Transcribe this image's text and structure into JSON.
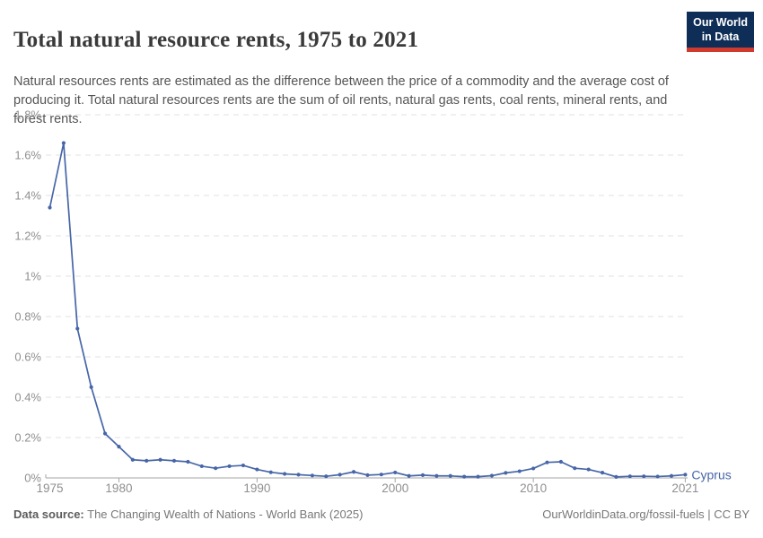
{
  "header": {
    "title": "Total natural resource rents, 1975 to 2021",
    "subtitle": "Natural resources rents are estimated as the difference between the price of a commodity and the average cost of producing it. Total natural resources rents are the sum of oil rents, natural gas rents, coal rents, mineral rents, and forest rents.",
    "logo": {
      "line1": "Our World",
      "line2": "in Data",
      "bg_color": "#0f2e57",
      "bar_color": "#d0392e"
    }
  },
  "chart_data": {
    "type": "line",
    "title": "Total natural resource rents, 1975 to 2021",
    "xlabel": "",
    "ylabel": "",
    "xlim": [
      1975,
      2021
    ],
    "ylim": [
      0,
      1.8
    ],
    "grid": "horizontal-dashed",
    "legend_position": "end-of-line-label",
    "entity_label": "Cyprus",
    "x_ticks": [
      1975,
      1980,
      1990,
      2000,
      2010,
      2021
    ],
    "y_ticks": [
      {
        "value": 0,
        "label": "0%"
      },
      {
        "value": 0.2,
        "label": "0.2%"
      },
      {
        "value": 0.4,
        "label": "0.4%"
      },
      {
        "value": 0.6,
        "label": "0.6%"
      },
      {
        "value": 0.8,
        "label": "0.8%"
      },
      {
        "value": 1,
        "label": "1%"
      },
      {
        "value": 1.2,
        "label": "1.2%"
      },
      {
        "value": 1.4,
        "label": "1.4%"
      },
      {
        "value": 1.6,
        "label": "1.6%"
      },
      {
        "value": 1.8,
        "label": "1.8%"
      }
    ],
    "series": [
      {
        "name": "Cyprus",
        "color": "#4766a8",
        "x": [
          1975,
          1976,
          1977,
          1978,
          1979,
          1980,
          1981,
          1982,
          1983,
          1984,
          1985,
          1986,
          1987,
          1988,
          1989,
          1990,
          1991,
          1992,
          1993,
          1994,
          1995,
          1996,
          1997,
          1998,
          1999,
          2000,
          2001,
          2002,
          2003,
          2004,
          2005,
          2006,
          2007,
          2008,
          2009,
          2010,
          2011,
          2012,
          2013,
          2014,
          2015,
          2016,
          2017,
          2018,
          2019,
          2020,
          2021
        ],
        "values": [
          1.34,
          1.66,
          0.74,
          0.45,
          0.22,
          0.155,
          0.09,
          0.085,
          0.09,
          0.085,
          0.08,
          0.058,
          0.048,
          0.058,
          0.062,
          0.042,
          0.028,
          0.02,
          0.016,
          0.012,
          0.008,
          0.016,
          0.03,
          0.014,
          0.017,
          0.027,
          0.01,
          0.014,
          0.01,
          0.01,
          0.006,
          0.006,
          0.011,
          0.025,
          0.033,
          0.047,
          0.077,
          0.08,
          0.048,
          0.042,
          0.026,
          0.005,
          0.008,
          0.008,
          0.007,
          0.01,
          0.016
        ]
      }
    ],
    "colors": {
      "grid_line": "#e0e0e0",
      "axis_line": "#a5a5a5",
      "tick_label": "#8f8f8f"
    }
  },
  "footer": {
    "source_prefix": "Data source:",
    "source_text": " The Changing Wealth of Nations - World Bank (2025)",
    "credit": "OurWorldinData.org/fossil-fuels | CC BY"
  }
}
